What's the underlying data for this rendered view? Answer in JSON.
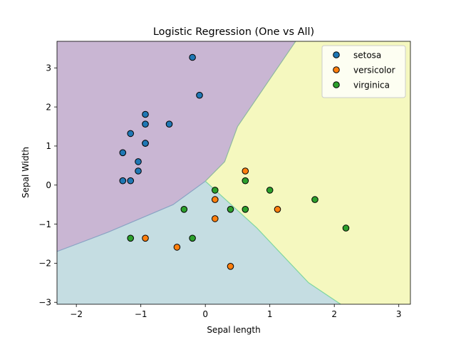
{
  "chart_data": {
    "type": "scatter",
    "title": "Logistic Regression (One vs All)",
    "xlabel": "Sepal length",
    "ylabel": "Sepal Width",
    "xlim": [
      -2.3,
      3.18
    ],
    "ylim": [
      -3.05,
      3.68
    ],
    "xticks": [
      -2,
      -1,
      0,
      1,
      2,
      3
    ],
    "yticks": [
      -3,
      -2,
      -1,
      0,
      1,
      2,
      3
    ],
    "xtick_labels": [
      "−2",
      "−1",
      "0",
      "1",
      "2",
      "3"
    ],
    "ytick_labels": [
      "−3",
      "−2",
      "−1",
      "0",
      "1",
      "2",
      "3"
    ],
    "grid": false,
    "legend_position": "top-right",
    "background_regions": [
      {
        "name": "setosa",
        "color": "#c9b6d3"
      },
      {
        "name": "versicolor",
        "color": "#f5f8bf"
      },
      {
        "name": "virginica",
        "color": "#c5dde2"
      }
    ],
    "decision_boundaries": {
      "setosa_vs_versicolor": [
        [
          0.0,
          0.1
        ],
        [
          0.3,
          0.6
        ],
        [
          0.5,
          1.5
        ],
        [
          1.4,
          3.68
        ]
      ],
      "virginica_vs_versicolor": [
        [
          0.0,
          0.1
        ],
        [
          0.8,
          -1.1
        ],
        [
          1.6,
          -2.5
        ],
        [
          2.1,
          -3.05
        ]
      ],
      "setosa_vs_virginica": [
        [
          -2.3,
          -1.7
        ],
        [
          -1.5,
          -1.2
        ],
        [
          -0.5,
          -0.5
        ],
        [
          0.0,
          0.1
        ]
      ]
    },
    "series": [
      {
        "name": "setosa",
        "color": "#1f77b4",
        "x": [
          -0.2,
          -0.09,
          -0.93,
          -0.93,
          -0.93,
          -0.56,
          -1.16,
          -0.93,
          -1.28,
          -1.04,
          -1.04,
          -1.28,
          -1.16
        ],
        "y": [
          3.27,
          2.3,
          1.81,
          1.56,
          1.07,
          1.56,
          1.32,
          1.07,
          0.83,
          0.6,
          0.36,
          0.11,
          0.11
        ]
      },
      {
        "name": "versicolor",
        "color": "#ff7f0e",
        "x": [
          0.62,
          0.15,
          0.15,
          1.12,
          -0.93,
          -0.44,
          0.39
        ],
        "y": [
          0.36,
          -0.37,
          -0.86,
          -0.62,
          -1.36,
          -1.59,
          -2.08
        ]
      },
      {
        "name": "virginica",
        "color": "#2ca02c",
        "x": [
          0.62,
          0.15,
          1.0,
          1.7,
          -0.33,
          0.39,
          0.62,
          2.18,
          -1.16,
          -0.2
        ],
        "y": [
          0.11,
          -0.13,
          -0.13,
          -0.37,
          -0.62,
          -0.62,
          -0.62,
          -1.1,
          -1.36,
          -1.36
        ]
      }
    ]
  }
}
